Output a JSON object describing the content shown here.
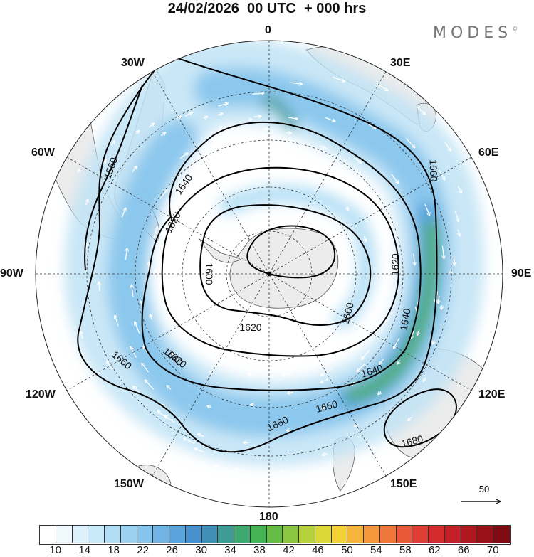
{
  "title": "24/02/2026  00 UTC  + 000 hrs",
  "brand": {
    "name": "MODES",
    "mark": "©"
  },
  "longitude_labels": {
    "deg0": "0",
    "deg30e": "30E",
    "deg60e": "60E",
    "deg90e": "90E",
    "deg120e": "120E",
    "deg150e": "150E",
    "deg180": "180",
    "deg150w": "150W",
    "deg120w": "120W",
    "deg90w": "90W",
    "deg60w": "60W",
    "deg30w": "30W"
  },
  "map": {
    "projection": "south polar stereographic",
    "field": "geopotential height contours with wind speed shading and wind vectors",
    "contour_labels": [
      "1560",
      "1620",
      "1640",
      "1620",
      "1600",
      "1640",
      "1660",
      "1660",
      "1620",
      "1600",
      "1640",
      "1640",
      "1660",
      "1620",
      "1660",
      "1680"
    ],
    "colors": {
      "land": "#ececec",
      "coast": "#555555",
      "contour": "#000000",
      "vectors": "#ffffff",
      "grid": "#333333"
    }
  },
  "reference_vector": {
    "value": "50"
  },
  "colorbar": {
    "colors": [
      "#ffffff",
      "#eef8fd",
      "#dcf1fb",
      "#c7e9f8",
      "#b1def5",
      "#9bd2f1",
      "#85c4ec",
      "#6fb4e4",
      "#5aa4db",
      "#4891cf",
      "#3f8fb7",
      "#3e9b94",
      "#3fa86f",
      "#46b455",
      "#66bd45",
      "#8bc640",
      "#b4d03a",
      "#dcd836",
      "#f4d236",
      "#f5b43a",
      "#f3963c",
      "#ef773b",
      "#e95939",
      "#e03e35",
      "#d32b2e",
      "#c31f27",
      "#b0171f",
      "#9a1218",
      "#7e0c12"
    ],
    "tick_labels": [
      "10",
      "14",
      "18",
      "22",
      "26",
      "30",
      "34",
      "38",
      "42",
      "46",
      "50",
      "54",
      "58",
      "62",
      "66",
      "70"
    ]
  }
}
